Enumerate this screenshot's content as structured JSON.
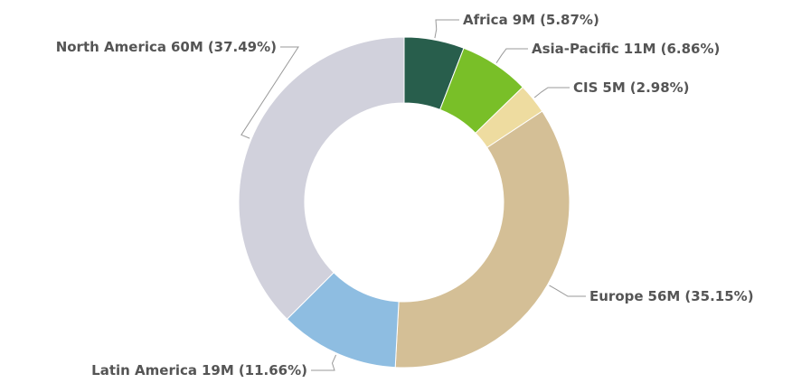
{
  "chart_data": {
    "type": "donut",
    "categories": [
      "Africa",
      "Asia-Pacific",
      "CIS",
      "Europe",
      "Latin America",
      "North America"
    ],
    "values": [
      9,
      11,
      5,
      56,
      19,
      60
    ],
    "value_labels": [
      "9M",
      "11M",
      "5M",
      "56M",
      "19M",
      "60M"
    ],
    "percentages": [
      5.87,
      6.86,
      2.98,
      35.15,
      11.66,
      37.49
    ],
    "percentage_labels": [
      "(5.87%)",
      "(6.86%)",
      "(2.98%)",
      "(35.15%)",
      "(11.66%)",
      "(37.49%)"
    ],
    "colors": [
      "#285e4c",
      "#79bf28",
      "#eedca0",
      "#d4bf96",
      "#8ebde1",
      "#d1d1dc"
    ]
  }
}
